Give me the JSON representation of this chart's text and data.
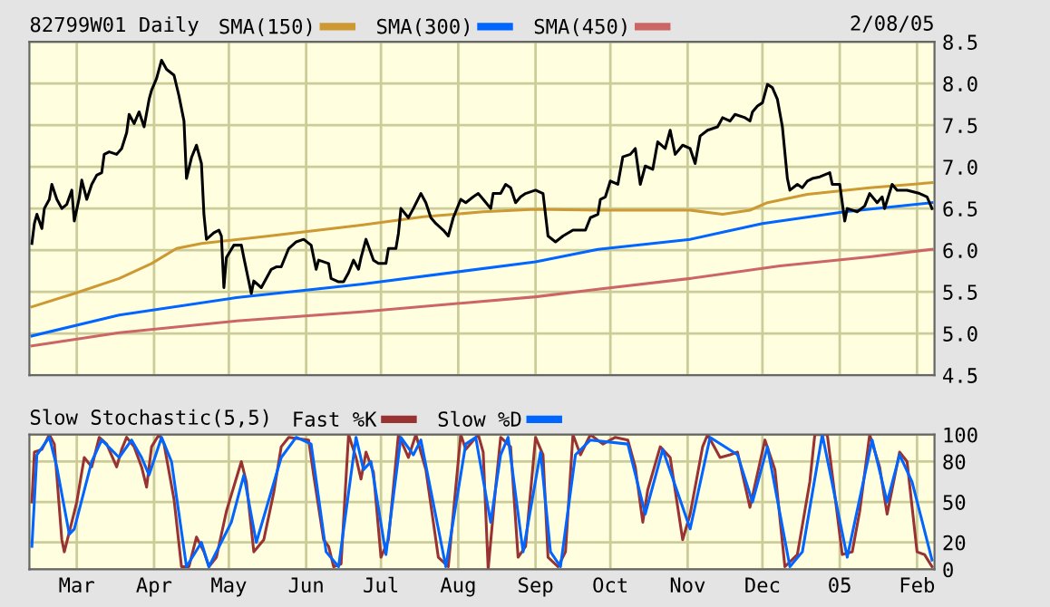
{
  "chart_data": [
    {
      "type": "line",
      "title": "82799W01 Daily",
      "annotations": [
        "2/08/05"
      ],
      "legend": "top",
      "grid": true,
      "tick_labels": "y",
      "xlim": [
        "2004-02-11",
        "2005-02-08"
      ],
      "xticks": [
        {
          "value": "2004-03-01",
          "label": null
        },
        {
          "value": "2004-04-01",
          "label": null
        },
        {
          "value": "2004-05-01",
          "label": null
        },
        {
          "value": "2004-06-01",
          "label": null
        },
        {
          "value": "2004-07-01",
          "label": null
        },
        {
          "value": "2004-08-01",
          "label": null
        },
        {
          "value": "2004-09-01",
          "label": null
        },
        {
          "value": "2004-10-01",
          "label": null
        },
        {
          "value": "2004-11-01",
          "label": null
        },
        {
          "value": "2004-12-01",
          "label": null
        },
        {
          "value": "2005-01-01",
          "label": null
        },
        {
          "value": "2005-02-01",
          "label": null
        }
      ],
      "ylim": [
        4.5,
        8.5
      ],
      "yticks": [
        {
          "value": 4.5,
          "label": "4.5"
        },
        {
          "value": 5,
          "label": "5.0"
        },
        {
          "value": 5.5,
          "label": "5.5"
        },
        {
          "value": 6,
          "label": "6.0"
        },
        {
          "value": 6.5,
          "label": "6.5"
        },
        {
          "value": 7,
          "label": "7.0"
        },
        {
          "value": 7.5,
          "label": "7.5"
        },
        {
          "value": 8,
          "label": "8.0"
        },
        {
          "value": 8.5,
          "label": "8.5"
        }
      ],
      "series": [
        {
          "name": "SMA(150)",
          "color": "#cc9933",
          "x": [
            "2004-02-12",
            "2004-02-29",
            "2004-03-18",
            "2004-03-31",
            "2004-04-10",
            "2004-04-20",
            "2004-05-17",
            "2004-06-23",
            "2004-07-18",
            "2004-08-11",
            "2004-09-01",
            "2004-09-26",
            "2004-11-02",
            "2004-11-15",
            "2004-11-26",
            "2004-12-03",
            "2004-12-19",
            "2005-01-13",
            "2005-02-07"
          ],
          "values": [
            5.32,
            5.48,
            5.66,
            5.84,
            6.02,
            6.08,
            6.17,
            6.3,
            6.4,
            6.46,
            6.49,
            6.48,
            6.48,
            6.43,
            6.48,
            6.57,
            6.67,
            6.75,
            6.81
          ]
        },
        {
          "name": "SMA(300)",
          "color": "#0066ff",
          "x": [
            "2004-02-12",
            "2004-03-18",
            "2004-05-04",
            "2004-06-23",
            "2004-09-01",
            "2004-09-26",
            "2004-11-02",
            "2004-12-01",
            "2005-01-03",
            "2005-02-07"
          ],
          "values": [
            4.97,
            5.22,
            5.43,
            5.59,
            5.86,
            6.01,
            6.13,
            6.32,
            6.46,
            6.57
          ]
        },
        {
          "name": "SMA(450)",
          "color": "#cc6666",
          "x": [
            "2004-02-12",
            "2004-03-18",
            "2004-05-04",
            "2004-06-23",
            "2004-09-01",
            "2004-09-26",
            "2004-11-02",
            "2004-12-08",
            "2005-01-13",
            "2005-02-07"
          ],
          "values": [
            4.85,
            5.01,
            5.15,
            5.26,
            5.44,
            5.53,
            5.66,
            5.81,
            5.92,
            6.01
          ]
        },
        {
          "color": "#000000",
          "x": [
            "2004-02-12",
            "2004-02-13",
            "2004-02-14",
            "2004-02-16",
            "2004-02-17",
            "2004-02-19",
            "2004-02-20",
            "2004-02-22",
            "2004-02-24",
            "2004-02-26",
            "2004-02-28",
            "2004-02-29",
            "2004-03-02",
            "2004-03-03",
            "2004-03-05",
            "2004-03-07",
            "2004-03-09",
            "2004-03-11",
            "2004-03-12",
            "2004-03-14",
            "2004-03-17",
            "2004-03-19",
            "2004-03-21",
            "2004-03-22",
            "2004-03-24",
            "2004-03-26",
            "2004-03-28",
            "2004-03-30",
            "2004-03-31",
            "2004-04-02",
            "2004-04-04",
            "2004-04-06",
            "2004-04-09",
            "2004-04-11",
            "2004-04-13",
            "2004-04-14",
            "2004-04-16",
            "2004-04-18",
            "2004-04-20",
            "2004-04-21",
            "2004-04-22",
            "2004-04-25",
            "2004-04-27",
            "2004-04-28",
            "2004-04-29",
            "2004-04-30",
            "2004-05-03",
            "2004-05-06",
            "2004-05-07",
            "2004-05-10",
            "2004-05-11",
            "2004-05-14",
            "2004-05-18",
            "2004-05-20",
            "2004-05-22",
            "2004-05-25",
            "2004-05-28",
            "2004-05-31",
            "2004-06-03",
            "2004-06-05",
            "2004-06-06",
            "2004-06-10",
            "2004-06-11",
            "2004-06-14",
            "2004-06-16",
            "2004-06-18",
            "2004-06-20",
            "2004-06-22",
            "2004-06-23",
            "2004-06-25",
            "2004-06-28",
            "2004-06-30",
            "2004-07-03",
            "2004-07-04",
            "2004-07-07",
            "2004-07-08",
            "2004-07-09",
            "2004-07-12",
            "2004-07-14",
            "2004-07-17",
            "2004-07-19",
            "2004-07-21",
            "2004-07-23",
            "2004-07-26",
            "2004-07-28",
            "2004-07-30",
            "2004-08-02",
            "2004-08-04",
            "2004-08-07",
            "2004-08-09",
            "2004-08-11",
            "2004-08-14",
            "2004-08-15",
            "2004-08-18",
            "2004-08-20",
            "2004-08-22",
            "2004-08-24",
            "2004-08-26",
            "2004-08-28",
            "2004-09-01",
            "2004-09-04",
            "2004-09-06",
            "2004-09-09",
            "2004-09-12",
            "2004-09-16",
            "2004-09-21",
            "2004-09-23",
            "2004-09-26",
            "2004-09-27",
            "2004-09-29",
            "2004-10-01",
            "2004-10-04",
            "2004-10-06",
            "2004-10-09",
            "2004-10-11",
            "2004-10-13",
            "2004-10-15",
            "2004-10-18",
            "2004-10-20",
            "2004-10-23",
            "2004-10-25",
            "2004-10-27",
            "2004-10-30",
            "2004-11-02",
            "2004-11-04",
            "2004-11-06",
            "2004-11-09",
            "2004-11-13",
            "2004-11-15",
            "2004-11-18",
            "2004-11-20",
            "2004-11-24",
            "2004-11-26",
            "2004-11-27",
            "2004-11-29",
            "2004-12-01",
            "2004-12-03",
            "2004-12-05",
            "2004-12-07",
            "2004-12-09",
            "2004-12-11",
            "2004-12-12",
            "2004-12-15",
            "2004-12-17",
            "2004-12-19",
            "2004-12-21",
            "2004-12-24",
            "2004-12-28",
            "2004-12-29",
            "2005-01-01",
            "2005-01-03",
            "2005-01-04",
            "2005-01-08",
            "2005-01-11",
            "2005-01-13",
            "2005-01-16",
            "2005-01-18",
            "2005-01-19",
            "2005-01-22",
            "2005-01-24",
            "2005-01-28",
            "2005-02-02",
            "2005-02-05",
            "2005-02-07"
          ],
          "values": [
            6.08,
            6.32,
            6.43,
            6.26,
            6.5,
            6.61,
            6.79,
            6.61,
            6.5,
            6.55,
            6.72,
            6.35,
            6.63,
            6.84,
            6.61,
            6.79,
            6.9,
            6.93,
            7.15,
            7.18,
            7.15,
            7.22,
            7.41,
            7.63,
            7.52,
            7.66,
            7.48,
            7.81,
            7.92,
            8.06,
            8.28,
            8.17,
            8.1,
            7.85,
            7.55,
            6.86,
            7.11,
            7.26,
            7.04,
            6.43,
            6.13,
            6.21,
            6.24,
            6.17,
            5.55,
            5.91,
            6.06,
            6.06,
            5.91,
            5.48,
            5.63,
            5.55,
            5.77,
            5.8,
            5.8,
            6.02,
            6.1,
            6.13,
            6.06,
            5.77,
            5.88,
            5.84,
            5.66,
            5.62,
            5.62,
            5.73,
            5.88,
            5.77,
            5.91,
            6.13,
            5.88,
            5.84,
            5.84,
            6.02,
            6.02,
            6.2,
            6.5,
            6.39,
            6.5,
            6.68,
            6.57,
            6.39,
            6.32,
            6.24,
            6.17,
            6.39,
            6.61,
            6.57,
            6.64,
            6.68,
            6.61,
            6.5,
            6.68,
            6.68,
            6.79,
            6.75,
            6.57,
            6.64,
            6.68,
            6.72,
            6.68,
            6.17,
            6.1,
            6.17,
            6.24,
            6.24,
            6.39,
            6.43,
            6.61,
            6.64,
            6.83,
            6.79,
            7.12,
            7.15,
            7.22,
            6.79,
            7.01,
            6.97,
            7.3,
            7.22,
            7.44,
            7.15,
            7.26,
            7.22,
            7.04,
            7.37,
            7.44,
            7.48,
            7.59,
            7.55,
            7.63,
            7.59,
            7.55,
            7.66,
            7.73,
            7.77,
            7.99,
            7.95,
            7.81,
            7.48,
            6.86,
            6.72,
            6.79,
            6.75,
            6.83,
            6.86,
            6.88,
            6.93,
            6.79,
            6.79,
            6.35,
            6.5,
            6.46,
            6.53,
            6.68,
            6.57,
            6.64,
            6.5,
            6.79,
            6.72,
            6.72,
            6.68,
            6.64,
            6.5
          ]
        }
      ]
    },
    {
      "type": "line",
      "title": "Slow Stochastic(5,5)",
      "legend": "top",
      "grid": true,
      "xlim": [
        "2004-02-11",
        "2005-02-08"
      ],
      "xticks": [
        {
          "value": "2004-03-01",
          "label": "Mar"
        },
        {
          "value": "2004-04-01",
          "label": "Apr"
        },
        {
          "value": "2004-05-01",
          "label": "May"
        },
        {
          "value": "2004-06-01",
          "label": "Jun"
        },
        {
          "value": "2004-07-01",
          "label": "Jul"
        },
        {
          "value": "2004-08-01",
          "label": "Aug"
        },
        {
          "value": "2004-09-01",
          "label": "Sep"
        },
        {
          "value": "2004-10-01",
          "label": "Oct"
        },
        {
          "value": "2004-11-01",
          "label": "Nov"
        },
        {
          "value": "2004-12-01",
          "label": "Dec"
        },
        {
          "value": "2005-01-01",
          "label": "05"
        },
        {
          "value": "2005-02-01",
          "label": "Feb"
        }
      ],
      "ylim": [
        0,
        100
      ],
      "yticks": [
        0,
        20,
        50,
        80,
        100
      ],
      "series": [
        {
          "name": "Fast %K",
          "color": "#993333",
          "x": [
            "2004-02-12",
            "2004-02-13",
            "2004-02-16",
            "2004-02-19",
            "2004-02-21",
            "2004-02-24",
            "2004-02-25",
            "2004-02-28",
            "2004-03-01",
            "2004-03-04",
            "2004-03-07",
            "2004-03-10",
            "2004-03-13",
            "2004-03-17",
            "2004-03-19",
            "2004-03-21",
            "2004-03-24",
            "2004-03-27",
            "2004-03-29",
            "2004-03-31",
            "2004-04-03",
            "2004-04-05",
            "2004-04-09",
            "2004-04-12",
            "2004-04-15",
            "2004-04-18",
            "2004-04-21",
            "2004-04-23",
            "2004-04-26",
            "2004-04-30",
            "2004-05-06",
            "2004-05-08",
            "2004-05-11",
            "2004-05-15",
            "2004-05-19",
            "2004-05-22",
            "2004-05-25",
            "2004-06-02",
            "2004-06-04",
            "2004-06-08",
            "2004-06-10",
            "2004-06-12",
            "2004-06-15",
            "2004-06-18",
            "2004-06-21",
            "2004-06-23",
            "2004-06-25",
            "2004-06-28",
            "2004-07-01",
            "2004-07-04",
            "2004-07-08",
            "2004-07-12",
            "2004-07-15",
            "2004-07-19",
            "2004-07-24",
            "2004-07-28",
            "2004-08-02",
            "2004-08-04",
            "2004-08-09",
            "2004-08-11",
            "2004-08-13",
            "2004-08-16",
            "2004-08-18",
            "2004-08-22",
            "2004-08-25",
            "2004-08-28",
            "2004-09-01",
            "2004-09-04",
            "2004-09-06",
            "2004-09-10",
            "2004-09-13",
            "2004-09-16",
            "2004-09-19",
            "2004-09-23",
            "2004-09-28",
            "2004-10-03",
            "2004-10-08",
            "2004-10-11",
            "2004-10-14",
            "2004-10-16",
            "2004-10-21",
            "2004-10-25",
            "2004-10-30",
            "2004-11-02",
            "2004-11-07",
            "2004-11-09",
            "2004-11-14",
            "2004-11-18",
            "2004-11-21",
            "2004-11-26",
            "2004-12-02",
            "2004-12-06",
            "2004-12-10",
            "2004-12-15",
            "2004-12-20",
            "2004-12-22",
            "2004-12-27",
            "2005-01-02",
            "2005-01-06",
            "2005-01-09",
            "2005-01-13",
            "2005-01-17",
            "2005-01-20",
            "2005-01-25",
            "2005-01-28",
            "2005-02-01",
            "2005-02-04",
            "2005-02-07"
          ],
          "values": [
            50,
            87,
            89,
            100,
            93,
            22,
            13,
            35,
            50,
            83,
            76,
            98,
            93,
            76,
            89,
            98,
            91,
            76,
            61,
            91,
            100,
            93,
            52,
            2,
            2,
            24,
            13,
            2,
            9,
            43,
            80,
            65,
            13,
            22,
            57,
            91,
            98,
            96,
            70,
            22,
            17,
            2,
            4,
            100,
            83,
            67,
            87,
            72,
            9,
            22,
            100,
            83,
            100,
            74,
            9,
            2,
            100,
            89,
            100,
            87,
            0,
            61,
            98,
            91,
            9,
            17,
            98,
            85,
            9,
            2,
            13,
            100,
            85,
            100,
            93,
            98,
            96,
            76,
            35,
            59,
            91,
            83,
            22,
            41,
            91,
            100,
            83,
            85,
            87,
            46,
            96,
            74,
            2,
            11,
            65,
            100,
            100,
            11,
            13,
            43,
            100,
            76,
            41,
            87,
            80,
            13,
            11,
            2
          ]
        },
        {
          "name": "Slow %D",
          "color": "#0066ff",
          "x": [
            "2004-02-12",
            "2004-02-14",
            "2004-02-19",
            "2004-02-22",
            "2004-02-27",
            "2004-02-29",
            "2004-03-07",
            "2004-03-11",
            "2004-03-18",
            "2004-03-23",
            "2004-03-27",
            "2004-03-30",
            "2004-04-04",
            "2004-04-08",
            "2004-04-14",
            "2004-04-20",
            "2004-04-23",
            "2004-05-02",
            "2004-05-07",
            "2004-05-12",
            "2004-05-22",
            "2004-05-28",
            "2004-06-03",
            "2004-06-09",
            "2004-06-14",
            "2004-06-21",
            "2004-06-24",
            "2004-06-27",
            "2004-07-03",
            "2004-07-09",
            "2004-07-14",
            "2004-07-17",
            "2004-07-27",
            "2004-08-04",
            "2004-08-08",
            "2004-08-14",
            "2004-08-18",
            "2004-08-21",
            "2004-08-27",
            "2004-09-03",
            "2004-09-07",
            "2004-09-11",
            "2004-09-17",
            "2004-09-23",
            "2004-10-08",
            "2004-10-15",
            "2004-10-22",
            "2004-11-02",
            "2004-11-10",
            "2004-11-21",
            "2004-11-27",
            "2004-12-03",
            "2004-12-12",
            "2004-12-17",
            "2004-12-25",
            "2005-01-04",
            "2005-01-14",
            "2005-01-20",
            "2005-01-25",
            "2005-01-30",
            "2005-02-07"
          ],
          "values": [
            17,
            85,
            98,
            76,
            26,
            30,
            80,
            96,
            83,
            96,
            83,
            70,
            98,
            80,
            2,
            20,
            2,
            35,
            70,
            20,
            83,
            98,
            93,
            13,
            2,
            98,
            74,
            80,
            11,
            98,
            85,
            96,
            2,
            93,
            98,
            35,
            85,
            98,
            13,
            87,
            13,
            2,
            85,
            96,
            93,
            41,
            89,
            30,
            98,
            85,
            50,
            91,
            2,
            13,
            100,
            9,
            96,
            50,
            85,
            65,
            7
          ]
        }
      ]
    }
  ]
}
